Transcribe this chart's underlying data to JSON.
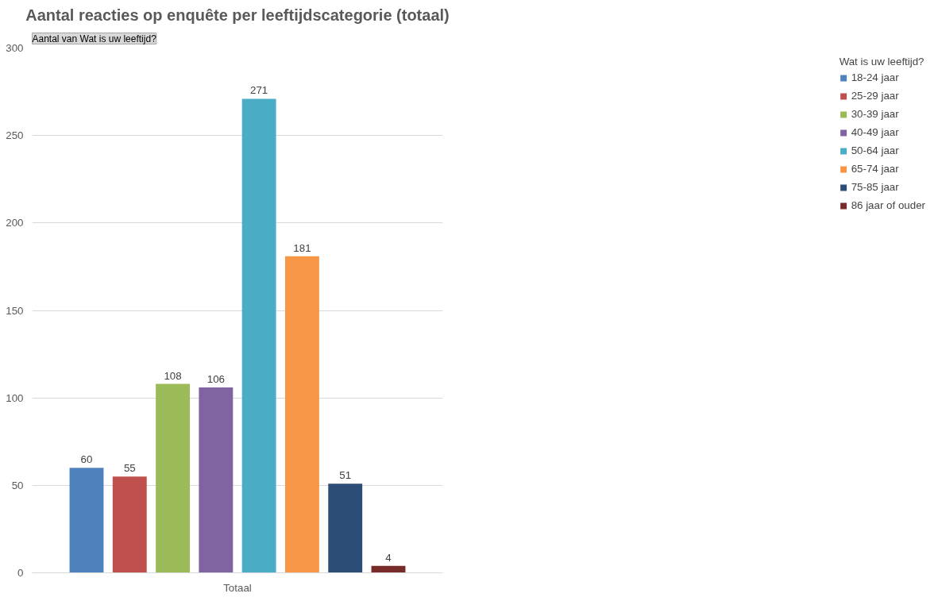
{
  "chart_data": {
    "type": "bar",
    "title": "Aantal reacties op enquête per leeftijdscategorie (totaal)",
    "annotations": [
      "Aantal van Wat is uw leeftijd?"
    ],
    "legend_title": "Wat is uw leeftijd?",
    "categories": [
      "Totaal"
    ],
    "series": [
      {
        "name": "18-24 jaar",
        "color": "#4f81bd",
        "values": [
          60
        ]
      },
      {
        "name": "25-29 jaar",
        "color": "#c0504d",
        "values": [
          55
        ]
      },
      {
        "name": "30-39 jaar",
        "color": "#9bbb59",
        "values": [
          108
        ]
      },
      {
        "name": "40-49 jaar",
        "color": "#8064a2",
        "values": [
          106
        ]
      },
      {
        "name": "50-64 jaar",
        "color": "#4bacc6",
        "values": [
          271
        ]
      },
      {
        "name": "65-74 jaar",
        "color": "#f79646",
        "values": [
          181
        ]
      },
      {
        "name": "75-85 jaar",
        "color": "#2c4d75",
        "values": [
          51
        ]
      },
      {
        "name": "86 jaar of ouder",
        "color": "#772c2a",
        "values": [
          4
        ]
      }
    ],
    "ylim": [
      0,
      300
    ],
    "yticks": [
      0,
      50,
      100,
      150,
      200,
      250,
      300
    ],
    "grid": "y",
    "legend": "right",
    "data_labels": true
  }
}
